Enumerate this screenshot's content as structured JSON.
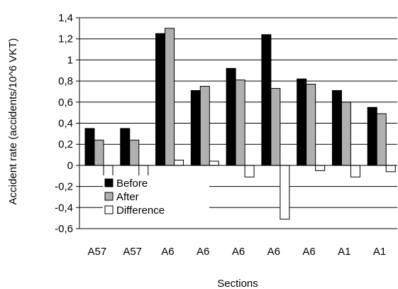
{
  "chart_data": {
    "type": "bar",
    "categories": [
      "A57",
      "A57",
      "A6",
      "A6",
      "A6",
      "A6",
      "A6",
      "A1",
      "A1"
    ],
    "series": [
      {
        "name": "Before",
        "color": "#000000",
        "values": [
          0.35,
          0.35,
          1.25,
          0.71,
          0.92,
          1.24,
          0.82,
          0.71,
          0.55
        ]
      },
      {
        "name": "After",
        "color": "#b0b0b0",
        "values": [
          0.24,
          0.24,
          1.3,
          0.75,
          0.81,
          0.73,
          0.77,
          0.6,
          0.49
        ]
      },
      {
        "name": "Difference",
        "color": "#ffffff",
        "values": [
          -0.11,
          -0.11,
          0.05,
          0.04,
          -0.11,
          -0.51,
          -0.05,
          -0.11,
          -0.06
        ]
      }
    ],
    "xlabel": "Sections",
    "ylabel": "Accident rate (accidents/10^6 VKT)",
    "ylim": [
      -0.6,
      1.4
    ],
    "yticks": [
      -0.6,
      -0.4,
      -0.2,
      0,
      0.2,
      0.4,
      0.6,
      0.8,
      1,
      1.2,
      1.4
    ],
    "ytick_labels": [
      "-0,6",
      "-0,4",
      "-0,2",
      "0",
      "0,2",
      "0,4",
      "0,6",
      "0,8",
      "1",
      "1,2",
      "1,4"
    ],
    "grid": "horizontal",
    "legend": "lower-left"
  }
}
